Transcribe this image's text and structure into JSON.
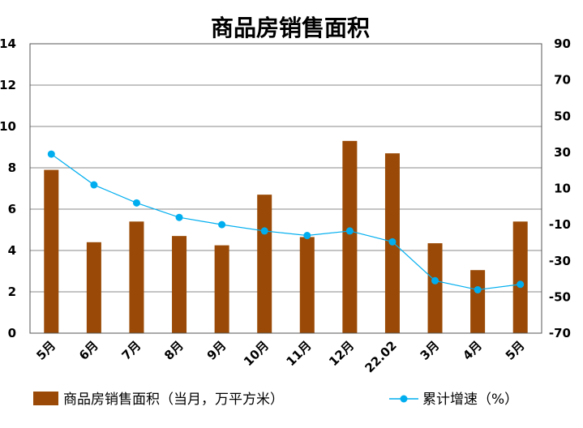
{
  "chart_data": {
    "type": "bar",
    "title": "商品房销售面积",
    "categories": [
      "5月",
      "6月",
      "7月",
      "8月",
      "9月",
      "10月",
      "11月",
      "12月",
      "22.02",
      "3月",
      "4月",
      "5月"
    ],
    "series": [
      {
        "name": "商品房销售面积（当月，万平方米）",
        "type": "bar",
        "axis": "left",
        "color": "#9A4A06",
        "values": [
          7.9,
          4.4,
          5.4,
          4.7,
          4.25,
          6.7,
          4.65,
          9.3,
          8.7,
          4.35,
          3.05,
          5.4
        ]
      },
      {
        "name": "累计增速（%）",
        "type": "line",
        "axis": "right",
        "color": "#00AEEF",
        "values": [
          29,
          12,
          2,
          -6,
          -10,
          -13.5,
          -16,
          -13.5,
          -19.5,
          -41,
          -46,
          -43
        ]
      }
    ],
    "y_left": {
      "min": 0,
      "max": 14,
      "ticks": [
        0,
        2,
        4,
        6,
        8,
        10,
        12,
        14
      ]
    },
    "y_right": {
      "min": -70,
      "max": 90,
      "ticks": [
        -70,
        -50,
        -30,
        -10,
        10,
        30,
        50,
        70,
        90
      ]
    },
    "grid": true,
    "legend_position": "bottom"
  }
}
